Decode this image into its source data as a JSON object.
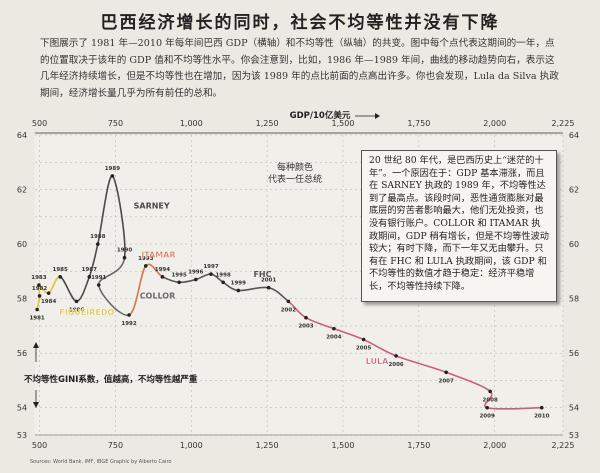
{
  "title": "巴西经济增长的同时，社会不均等性并没有下降",
  "intro": "下图展示了 1981 年—2010 年每年间巴西 GDP（横轴）和不均等性（纵轴）的共变。图中每个点代表这期间的一年，点的位置取决于该年的 GDP 值和不均等性水平。你会注意到，比如，1986 年—1989 年间，曲线的移动趋势向右，表示这几年经济持续增长，但是不均等性也在增加，因为该 1989 年的点比前面的点高出许多。你也会发现，Lula da Silva 执政期间，经济增长量几乎为所有前任的总和。",
  "callout": "20 世纪 80 年代，是巴西历史上“迷茫的十年”。一个原因在于：GDP 基本滞涨，而且在 SARNEY 执政的 1989 年，不均等性达到了最高点。该段时间，恶性通货膨胀对最底层的穷苦者影响最大，他们无处投资，也没有银行账户。COLLOR 和 ITAMAR 执政期间，GDP 稍有增长，但是不均等性波动较大；有时下降，而下一年又无由攀升。只有在 FHC 和 LULA 执政期间，该 GDP 和不均等性的数值才趋于稳定：经济平稳增长，不均等性持续下降。",
  "source": "Sources: World Bank, IMF, IBGE   Graphic by Alberto Cairo",
  "chart_data": {
    "type": "line",
    "xlabel": "GDP/10亿美元",
    "ylabel": "不均等性GINI系数，值越高，不均等性越严重",
    "xlim": [
      485,
      2225
    ],
    "ylim": [
      53,
      64
    ],
    "x_ticks": [
      500,
      750,
      1000,
      1250,
      1500,
      1750,
      2000,
      2225
    ],
    "x_tick_labels": [
      "500",
      "750",
      "1,000",
      "1,250",
      "1,500",
      "1,750",
      "2,000",
      "2,225"
    ],
    "y_ticks": [
      53,
      54,
      55,
      56,
      57,
      58,
      59,
      60,
      61,
      62,
      63,
      64
    ],
    "y_tick_labels": [
      "53",
      "54",
      "55",
      "56",
      "57",
      "58",
      "59",
      "60",
      "61",
      "62",
      "63",
      "64"
    ],
    "color_legend": "每种颜色\n代表一任总统",
    "presidents": [
      {
        "name": "FIGUEIREDO",
        "color": "#e3c23a"
      },
      {
        "name": "SARNEY",
        "color": "#4a4a4a"
      },
      {
        "name": "COLLOR",
        "color": "#6a6a6a"
      },
      {
        "name": "ITAMAR",
        "color": "#d9734e"
      },
      {
        "name": "FHC",
        "color": "#555555"
      },
      {
        "name": "LULA",
        "color": "#c9607a"
      }
    ],
    "points": [
      {
        "year": "1981",
        "x": 492,
        "y": 57.6
      },
      {
        "year": "1982",
        "x": 500,
        "y": 58.1
      },
      {
        "year": "1983",
        "x": 498,
        "y": 58.5
      },
      {
        "year": "1984",
        "x": 530,
        "y": 58.2
      },
      {
        "year": "1985",
        "x": 568,
        "y": 58.8
      },
      {
        "year": "1986",
        "x": 622,
        "y": 57.9
      },
      {
        "year": "1987",
        "x": 664,
        "y": 58.8
      },
      {
        "year": "1988",
        "x": 692,
        "y": 60.0
      },
      {
        "year": "1989",
        "x": 740,
        "y": 62.5
      },
      {
        "year": "1990",
        "x": 780,
        "y": 59.5
      },
      {
        "year": "1991",
        "x": 695,
        "y": 58.5
      },
      {
        "year": "1992",
        "x": 795,
        "y": 57.4
      },
      {
        "year": "1993",
        "x": 850,
        "y": 59.2
      },
      {
        "year": "1994",
        "x": 905,
        "y": 58.8
      },
      {
        "year": "1995",
        "x": 960,
        "y": 58.6
      },
      {
        "year": "1996",
        "x": 1015,
        "y": 58.7
      },
      {
        "year": "1997",
        "x": 1065,
        "y": 58.9
      },
      {
        "year": "1998",
        "x": 1105,
        "y": 58.6
      },
      {
        "year": "1999",
        "x": 1155,
        "y": 58.3
      },
      {
        "year": "2001",
        "x": 1255,
        "y": 58.4
      },
      {
        "year": "2002",
        "x": 1320,
        "y": 57.9
      },
      {
        "year": "2003",
        "x": 1378,
        "y": 57.3
      },
      {
        "year": "2004",
        "x": 1470,
        "y": 56.9
      },
      {
        "year": "2005",
        "x": 1568,
        "y": 56.5
      },
      {
        "year": "2006",
        "x": 1675,
        "y": 55.9
      },
      {
        "year": "2007",
        "x": 1840,
        "y": 55.3
      },
      {
        "year": "2008",
        "x": 1985,
        "y": 54.6
      },
      {
        "year": "2009",
        "x": 1975,
        "y": 54.0
      },
      {
        "year": "2010",
        "x": 2155,
        "y": 54.0
      }
    ]
  }
}
